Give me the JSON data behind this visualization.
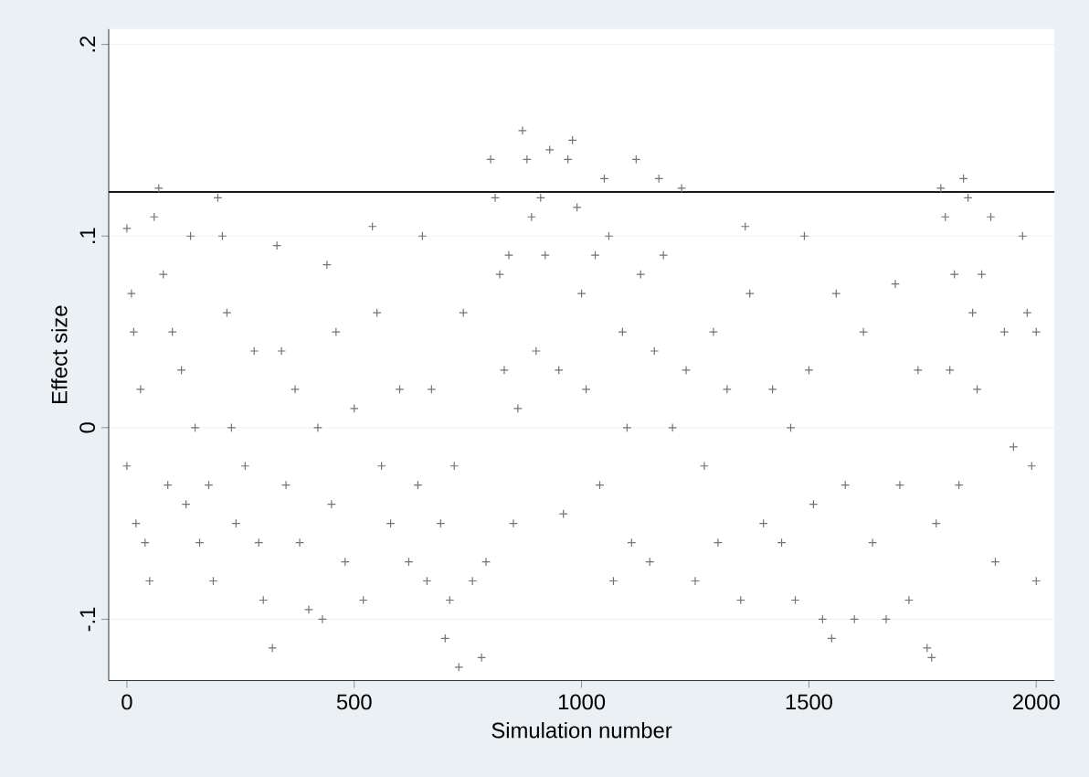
{
  "chart_data": {
    "type": "scatter",
    "xlabel": "Simulation number",
    "ylabel": "Effect size",
    "xlim": [
      -40,
      2040
    ],
    "ylim": [
      -0.132,
      0.208
    ],
    "xticks": [
      0,
      500,
      1000,
      1500,
      2000
    ],
    "yticks": [
      {
        "value": -0.1,
        "label": "-.1"
      },
      0,
      {
        "value": 0.1,
        "label": ".1"
      },
      {
        "value": 0.2,
        "label": ".2"
      }
    ],
    "grid": "y",
    "marker": "cross",
    "ref_lines": [
      {
        "axis": "y",
        "value": 0.123,
        "color": "#1a1a1a"
      }
    ],
    "series": [
      {
        "color": "#737373",
        "x": [
          0,
          0,
          10,
          15,
          20,
          30,
          40,
          50,
          60,
          70,
          80,
          90,
          100,
          120,
          130,
          140,
          150,
          160,
          180,
          190,
          200,
          210,
          220,
          230,
          240,
          260,
          280,
          290,
          300,
          320,
          330,
          340,
          350,
          370,
          380,
          400,
          420,
          430,
          440,
          450,
          460,
          480,
          500,
          520,
          540,
          550,
          560,
          580,
          600,
          620,
          640,
          650,
          660,
          670,
          690,
          700,
          710,
          720,
          730,
          740,
          760,
          780,
          790,
          800,
          810,
          820,
          830,
          840,
          850,
          860,
          870,
          880,
          890,
          900,
          910,
          920,
          930,
          950,
          960,
          970,
          980,
          990,
          1000,
          1010,
          1030,
          1040,
          1050,
          1060,
          1070,
          1090,
          1100,
          1110,
          1120,
          1130,
          1150,
          1160,
          1170,
          1180,
          1200,
          1220,
          1230,
          1250,
          1270,
          1290,
          1300,
          1320,
          1350,
          1360,
          1370,
          1400,
          1420,
          1440,
          1460,
          1470,
          1490,
          1500,
          1510,
          1530,
          1550,
          1560,
          1580,
          1600,
          1620,
          1640,
          1670,
          1690,
          1700,
          1720,
          1740,
          1760,
          1770,
          1780,
          1790,
          1800,
          1810,
          1820,
          1830,
          1840,
          1850,
          1860,
          1870,
          1880,
          1900,
          1910,
          1930,
          1950,
          1970,
          1980,
          1990,
          2000,
          2000
        ],
        "values": [
          0.104,
          -0.02,
          0.07,
          0.05,
          -0.05,
          0.02,
          -0.06,
          -0.08,
          0.11,
          0.125,
          0.08,
          -0.03,
          0.05,
          0.03,
          -0.04,
          0.1,
          0.0,
          -0.06,
          -0.03,
          -0.08,
          0.12,
          0.1,
          0.06,
          0.0,
          -0.05,
          -0.02,
          0.04,
          -0.06,
          -0.09,
          -0.115,
          0.095,
          0.04,
          -0.03,
          0.02,
          -0.06,
          -0.095,
          0.0,
          -0.1,
          0.085,
          -0.04,
          0.05,
          -0.07,
          0.01,
          -0.09,
          0.105,
          0.06,
          -0.02,
          -0.05,
          0.02,
          -0.07,
          -0.03,
          0.1,
          -0.08,
          0.02,
          -0.05,
          -0.11,
          -0.09,
          -0.02,
          -0.125,
          0.06,
          -0.08,
          -0.12,
          -0.07,
          0.14,
          0.12,
          0.08,
          0.03,
          0.09,
          -0.05,
          0.01,
          0.155,
          0.14,
          0.11,
          0.04,
          0.12,
          0.09,
          0.145,
          0.03,
          -0.045,
          0.14,
          0.15,
          0.115,
          0.07,
          0.02,
          0.09,
          -0.03,
          0.13,
          0.1,
          -0.08,
          0.05,
          0.0,
          -0.06,
          0.14,
          0.08,
          -0.07,
          0.04,
          0.13,
          0.09,
          0.0,
          0.125,
          0.03,
          -0.08,
          -0.02,
          0.05,
          -0.06,
          0.02,
          -0.09,
          0.105,
          0.07,
          -0.05,
          0.02,
          -0.06,
          0.0,
          -0.09,
          0.1,
          0.03,
          -0.04,
          -0.1,
          -0.11,
          0.07,
          -0.03,
          -0.1,
          0.05,
          -0.06,
          -0.1,
          0.075,
          -0.03,
          -0.09,
          0.03,
          -0.115,
          -0.12,
          -0.05,
          0.125,
          0.11,
          0.03,
          0.08,
          -0.03,
          0.13,
          0.12,
          0.06,
          0.02,
          0.08,
          0.11,
          -0.07,
          0.05,
          -0.01,
          0.1,
          0.06,
          -0.02,
          -0.08,
          0.05
        ]
      }
    ]
  }
}
